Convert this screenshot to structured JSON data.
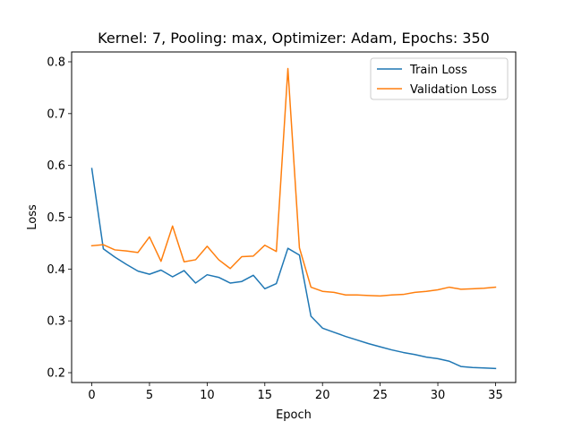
{
  "chart_data": {
    "type": "line",
    "title": "Kernel: 7, Pooling: max, Optimizer: Adam, Epochs: 350",
    "xlabel": "Epoch",
    "ylabel": "Loss",
    "xlim": [
      -1.75,
      36.75
    ],
    "ylim": [
      0.181,
      0.819
    ],
    "xticks": [
      0,
      5,
      10,
      15,
      20,
      25,
      30,
      35
    ],
    "yticks": [
      0.2,
      0.3,
      0.4,
      0.5,
      0.6,
      0.7,
      0.8
    ],
    "grid": false,
    "legend_position": "top-right",
    "x": [
      0,
      1,
      2,
      3,
      4,
      5,
      6,
      7,
      8,
      9,
      10,
      11,
      12,
      13,
      14,
      15,
      16,
      17,
      18,
      19,
      20,
      21,
      22,
      23,
      24,
      25,
      26,
      27,
      28,
      29,
      30,
      31,
      32,
      33,
      34,
      35
    ],
    "series": [
      {
        "name": "Train Loss",
        "color": "#1f77b4",
        "values": [
          0.594,
          0.439,
          0.423,
          0.409,
          0.396,
          0.39,
          0.398,
          0.385,
          0.397,
          0.373,
          0.389,
          0.384,
          0.373,
          0.376,
          0.388,
          0.362,
          0.372,
          0.44,
          0.427,
          0.309,
          0.286,
          0.278,
          0.27,
          0.263,
          0.256,
          0.25,
          0.244,
          0.239,
          0.235,
          0.23,
          0.227,
          0.222,
          0.212,
          0.21,
          0.209,
          0.208
        ]
      },
      {
        "name": "Validation Loss",
        "color": "#ff7f0e",
        "values": [
          0.445,
          0.447,
          0.437,
          0.435,
          0.432,
          0.462,
          0.415,
          0.483,
          0.414,
          0.418,
          0.444,
          0.418,
          0.401,
          0.424,
          0.425,
          0.446,
          0.434,
          0.787,
          0.441,
          0.365,
          0.357,
          0.355,
          0.35,
          0.35,
          0.349,
          0.348,
          0.35,
          0.351,
          0.355,
          0.357,
          0.36,
          0.365,
          0.361,
          0.362,
          0.363,
          0.365
        ]
      }
    ]
  }
}
